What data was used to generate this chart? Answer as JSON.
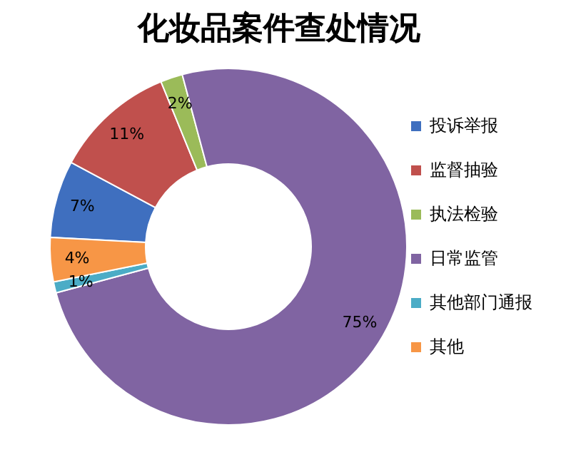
{
  "chart_data": {
    "type": "donut",
    "title": "化妆品案件查处情况",
    "categories": [
      "投诉举报",
      "监督抽验",
      "执法检验",
      "日常监管",
      "其他部门通报",
      "其他"
    ],
    "values": [
      7,
      11,
      2,
      75,
      1,
      4
    ],
    "colors": [
      "#3f6fbf",
      "#c0504d",
      "#9bbb59",
      "#8064a2",
      "#4bacc6",
      "#f79646"
    ],
    "value_labels": [
      "7%",
      "11%",
      "2%",
      "75%",
      "1%",
      "4%"
    ],
    "legend": "right"
  }
}
